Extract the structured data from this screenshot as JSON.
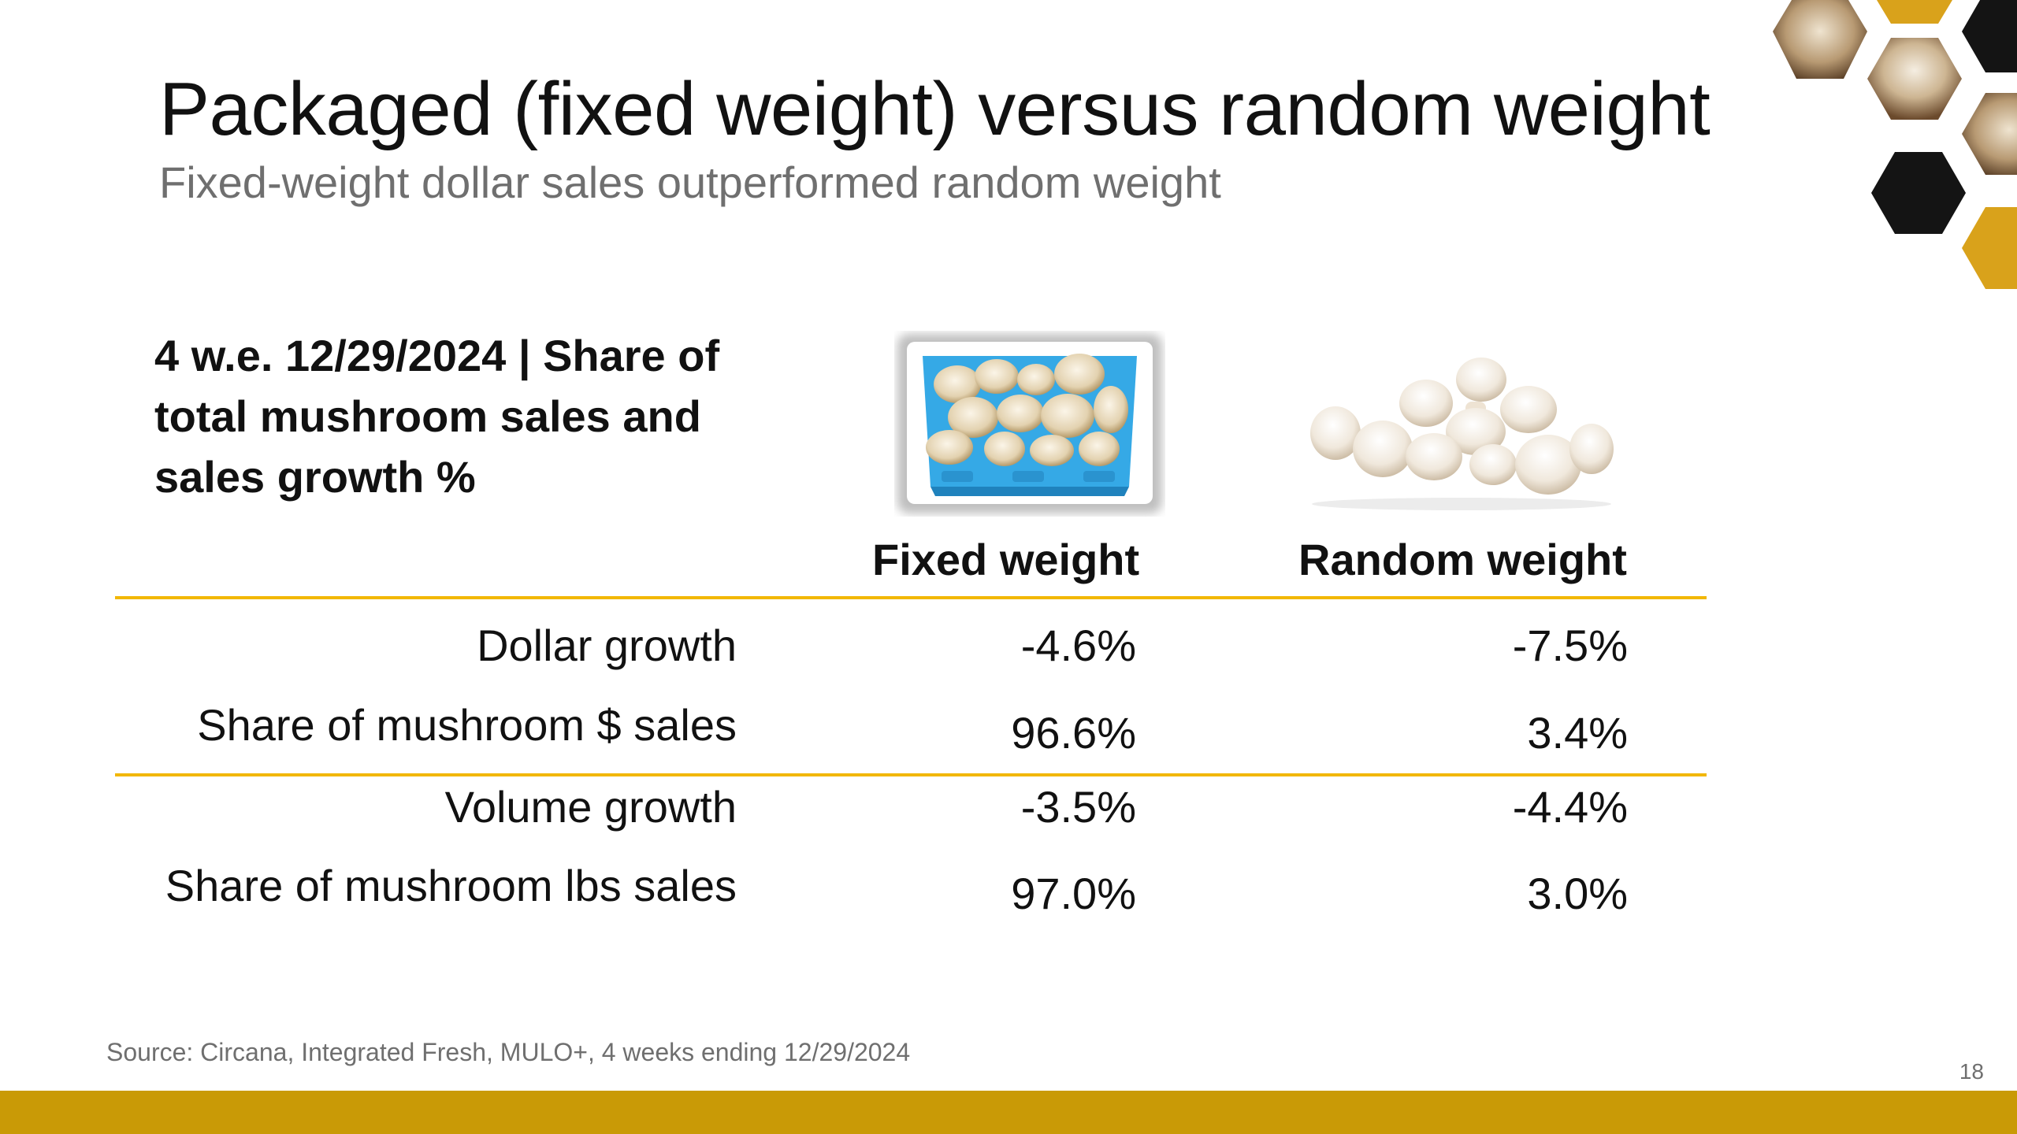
{
  "slide": {
    "title": "Packaged (fixed weight) versus random weight",
    "subtitle": "Fixed-weight dollar sales outperformed random weight",
    "page_number": "18",
    "source": "Source: Circana, Integrated Fresh, MULO+, 4 weeks ending 12/29/2024"
  },
  "table": {
    "caption": "4 w.e. 12/29/2024 | Share of total mushroom sales and sales growth %",
    "columns": [
      "Fixed weight",
      "Random weight"
    ],
    "rows": [
      {
        "label": "Dollar growth",
        "values": [
          "-4.6%",
          "-7.5%"
        ]
      },
      {
        "label": "Share of mushroom $ sales",
        "values": [
          "96.6%",
          "3.4%"
        ]
      },
      {
        "label": "Volume growth",
        "values": [
          "-3.5%",
          "-4.4%"
        ]
      },
      {
        "label": "Share of mushroom lbs sales",
        "values": [
          "97.0%",
          "3.0%"
        ]
      }
    ]
  },
  "images": {
    "fixed": "packaged-mushrooms-carton-image",
    "random": "loose-mushrooms-pile-image"
  },
  "colors": {
    "rule": "#f2b705",
    "footer_bar": "#c99a06",
    "hex_gold": "#d9a21b",
    "hex_black": "#141414",
    "carton_blue": "#35a9e6"
  }
}
